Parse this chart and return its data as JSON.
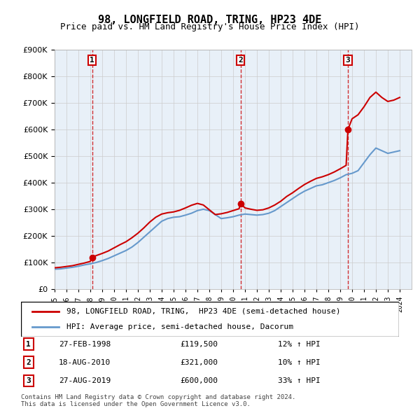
{
  "title": "98, LONGFIELD ROAD, TRING, HP23 4DE",
  "subtitle": "Price paid vs. HM Land Registry's House Price Index (HPI)",
  "legend_line1": "98, LONGFIELD ROAD, TRING,  HP23 4DE (semi-detached house)",
  "legend_line2": "HPI: Average price, semi-detached house, Dacorum",
  "footer1": "Contains HM Land Registry data © Crown copyright and database right 2024.",
  "footer2": "This data is licensed under the Open Government Licence v3.0.",
  "sales": [
    {
      "num": 1,
      "date": "27-FEB-1998",
      "price": 119500,
      "year": 1998.15,
      "pct": "12%",
      "dir": "↑"
    },
    {
      "num": 2,
      "date": "18-AUG-2010",
      "price": 321000,
      "year": 2010.63,
      "pct": "10%",
      "dir": "↑"
    },
    {
      "num": 3,
      "date": "27-AUG-2019",
      "price": 600000,
      "year": 2019.65,
      "pct": "33%",
      "dir": "↑"
    }
  ],
  "red_line_color": "#cc0000",
  "blue_line_color": "#6699cc",
  "grid_color": "#cccccc",
  "sale_marker_color": "#cc0000",
  "dashed_line_color": "#cc0000",
  "box_color": "#cc0000",
  "ylim": [
    0,
    900000
  ],
  "xlim": [
    1995,
    2025
  ],
  "hpi_data": {
    "years": [
      1995.0,
      1995.5,
      1996.0,
      1996.5,
      1997.0,
      1997.5,
      1998.0,
      1998.5,
      1999.0,
      1999.5,
      2000.0,
      2000.5,
      2001.0,
      2001.5,
      2002.0,
      2002.5,
      2003.0,
      2003.5,
      2004.0,
      2004.5,
      2005.0,
      2005.5,
      2006.0,
      2006.5,
      2007.0,
      2007.5,
      2008.0,
      2008.5,
      2009.0,
      2009.5,
      2010.0,
      2010.5,
      2011.0,
      2011.5,
      2012.0,
      2012.5,
      2013.0,
      2013.5,
      2014.0,
      2014.5,
      2015.0,
      2015.5,
      2016.0,
      2016.5,
      2017.0,
      2017.5,
      2018.0,
      2018.5,
      2019.0,
      2019.5,
      2020.0,
      2020.5,
      2021.0,
      2021.5,
      2022.0,
      2022.5,
      2023.0,
      2023.5,
      2024.0
    ],
    "values": [
      75000,
      76000,
      79000,
      82000,
      86000,
      91000,
      95000,
      100000,
      107000,
      115000,
      125000,
      135000,
      145000,
      158000,
      175000,
      195000,
      215000,
      235000,
      255000,
      265000,
      270000,
      272000,
      278000,
      285000,
      295000,
      300000,
      295000,
      280000,
      265000,
      268000,
      272000,
      278000,
      282000,
      280000,
      278000,
      280000,
      285000,
      295000,
      310000,
      325000,
      340000,
      355000,
      368000,
      378000,
      388000,
      392000,
      400000,
      408000,
      418000,
      430000,
      435000,
      445000,
      475000,
      505000,
      530000,
      520000,
      510000,
      515000,
      520000
    ]
  },
  "red_line_data": {
    "years": [
      1995.0,
      1995.5,
      1996.0,
      1996.5,
      1997.0,
      1997.5,
      1998.0,
      1998.15,
      1998.5,
      1999.0,
      1999.5,
      2000.0,
      2000.5,
      2001.0,
      2001.5,
      2002.0,
      2002.5,
      2003.0,
      2003.5,
      2004.0,
      2004.5,
      2005.0,
      2005.5,
      2006.0,
      2006.5,
      2007.0,
      2007.5,
      2008.0,
      2008.5,
      2009.0,
      2009.5,
      2010.0,
      2010.5,
      2010.63,
      2011.0,
      2011.5,
      2012.0,
      2012.5,
      2013.0,
      2013.5,
      2014.0,
      2014.5,
      2015.0,
      2015.5,
      2016.0,
      2016.5,
      2017.0,
      2017.5,
      2018.0,
      2018.5,
      2019.0,
      2019.5,
      2019.65,
      2020.0,
      2020.5,
      2021.0,
      2021.5,
      2022.0,
      2022.5,
      2023.0,
      2023.5,
      2024.0
    ],
    "values": [
      80000,
      82000,
      85000,
      88000,
      93000,
      98000,
      104000,
      119500,
      126000,
      134000,
      143000,
      155000,
      167000,
      178000,
      193000,
      210000,
      230000,
      252000,
      270000,
      282000,
      287000,
      290000,
      296000,
      305000,
      315000,
      322000,
      316000,
      298000,
      280000,
      283000,
      288000,
      295000,
      302000,
      321000,
      305000,
      300000,
      296000,
      298000,
      305000,
      316000,
      330000,
      348000,
      362000,
      378000,
      393000,
      405000,
      416000,
      422000,
      430000,
      440000,
      452000,
      465000,
      600000,
      640000,
      655000,
      685000,
      720000,
      740000,
      720000,
      705000,
      710000,
      720000
    ]
  }
}
